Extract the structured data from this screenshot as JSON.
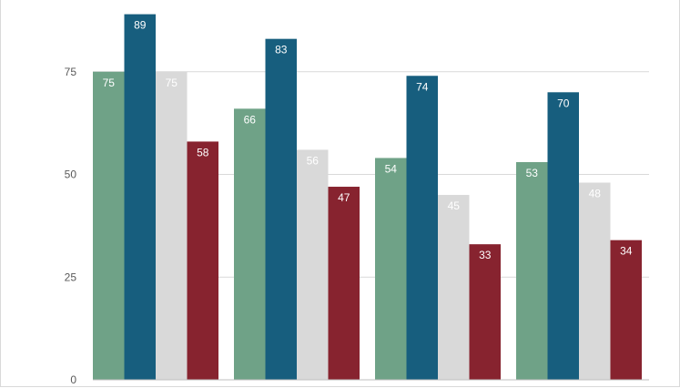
{
  "chart_data": {
    "type": "bar",
    "categories": [
      "",
      "",
      "",
      ""
    ],
    "series": [
      {
        "values": [
          75,
          66,
          54,
          53
        ],
        "color": "#6fa287",
        "label_color": "#ffffff"
      },
      {
        "values": [
          89,
          83,
          74,
          70
        ],
        "color": "#175e7e",
        "label_color": "#ffffff"
      },
      {
        "values": [
          75,
          56,
          45,
          48
        ],
        "color": "#d9d9d9",
        "label_color": "#ffffff"
      },
      {
        "values": [
          58,
          47,
          33,
          34
        ],
        "color": "#87232f",
        "label_color": "#ffffff"
      }
    ],
    "title": "",
    "xlabel": "",
    "ylabel": "",
    "ylim": [
      0,
      90
    ],
    "yticks": [
      0,
      25,
      50,
      75
    ],
    "ytick_labels": [
      "0",
      "25",
      "50",
      "75"
    ],
    "grid": true,
    "legend": "none",
    "gridline_color": "#d9d9d9",
    "axis_color": "#bfbfbf",
    "tick_color": "#595959"
  }
}
